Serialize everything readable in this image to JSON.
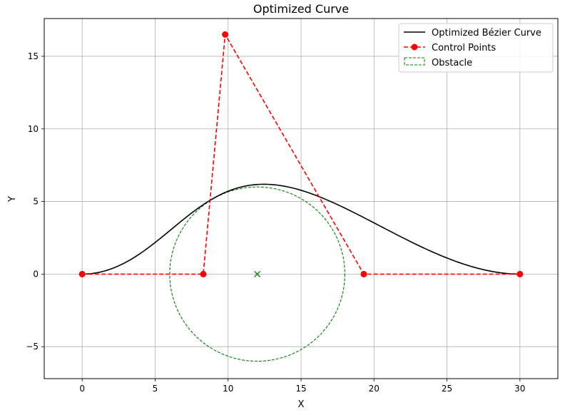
{
  "chart_data": {
    "type": "line",
    "title": "Optimized Curve",
    "xlabel": "X",
    "ylabel": "Y",
    "xlim": [
      -2.6,
      32.6
    ],
    "ylim": [
      -7.2,
      17.6
    ],
    "xticks": [
      0,
      5,
      10,
      15,
      20,
      25,
      30
    ],
    "xtick_labels": [
      "0",
      "5",
      "10",
      "15",
      "20",
      "25",
      "30"
    ],
    "yticks": [
      -5,
      0,
      5,
      10,
      15
    ],
    "ytick_labels": [
      "−5",
      "0",
      "5",
      "10",
      "15"
    ],
    "grid": true,
    "legend_placement": "upper right",
    "series": [
      {
        "name": "Optimized Bézier Curve",
        "kind": "bezier-curve",
        "color": "#000000",
        "line_style": "solid",
        "control_points": [
          [
            0,
            0
          ],
          [
            8.3,
            0
          ],
          [
            9.8,
            16.5
          ],
          [
            19.3,
            0
          ],
          [
            30,
            0
          ]
        ]
      },
      {
        "name": "Control Points",
        "kind": "polyline-markers",
        "color": "#ff0000",
        "line_style": "dashed",
        "marker": "circle",
        "x": [
          0,
          8.3,
          9.8,
          19.3,
          30
        ],
        "y": [
          0,
          0,
          16.5,
          0,
          0
        ]
      },
      {
        "name": "Obstacle",
        "kind": "circle",
        "color": "#008000",
        "line_style": "dashed",
        "center": [
          12,
          0
        ],
        "radius": 6,
        "center_marker": "x"
      }
    ]
  }
}
